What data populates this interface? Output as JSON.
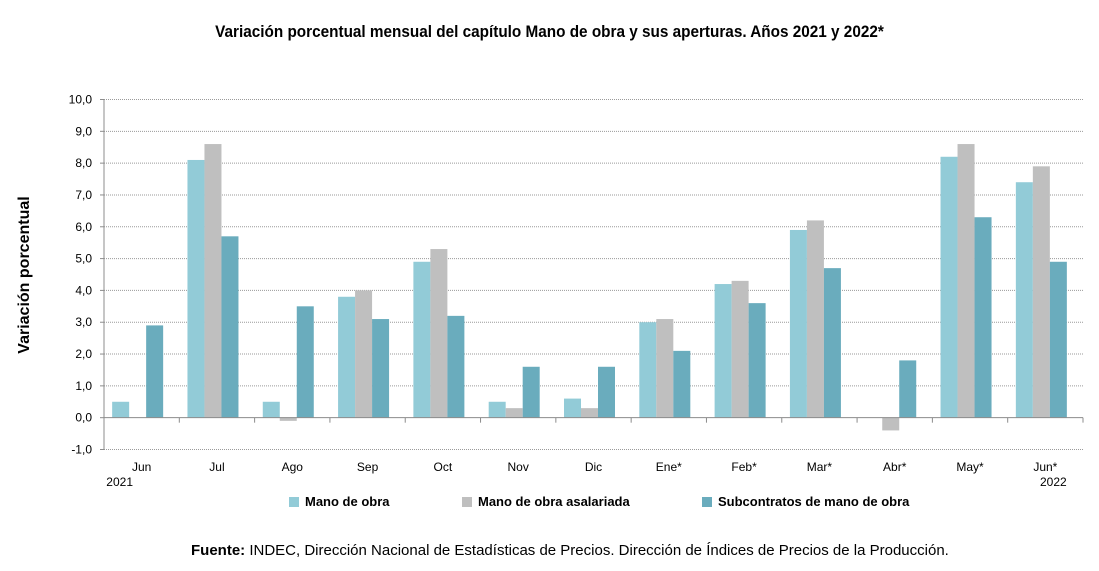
{
  "chart_data": {
    "type": "bar",
    "title": "Variación porcentual mensual del capítulo Mano de obra y sus aperturas. Años 2021 y 2022*",
    "ylabel": "Variación porcentual",
    "xlabel": "",
    "ylim": [
      -1,
      10
    ],
    "yticks": [
      "10,0",
      "9,0",
      "8,0",
      "7,0",
      "6,0",
      "5,0",
      "4,0",
      "3,0",
      "2,0",
      "1,0",
      "0,0",
      "-1,0"
    ],
    "categories": [
      "Jun",
      "Jul",
      "Ago",
      "Sep",
      "Oct",
      "Nov",
      "Dic",
      "Ene*",
      "Feb*",
      "Mar*",
      "Abr*",
      "May*",
      "Jun*"
    ],
    "year_labels": {
      "first": "2021",
      "last": "2022"
    },
    "grid": true,
    "legend_position": "bottom",
    "series": [
      {
        "name": "Mano de obra",
        "color": "#92cbd7",
        "values": [
          0.5,
          8.1,
          0.5,
          3.8,
          4.9,
          0.5,
          0.6,
          3.0,
          4.2,
          5.9,
          0.0,
          8.2,
          7.4
        ]
      },
      {
        "name": "Mano de obra asalariada",
        "color": "#bfbfbf",
        "values": [
          0.0,
          8.6,
          -0.1,
          4.0,
          5.3,
          0.3,
          0.3,
          3.1,
          4.3,
          6.2,
          -0.4,
          8.6,
          7.9
        ]
      },
      {
        "name": "Subcontratos de mano de obra",
        "color": "#6aacbd",
        "values": [
          2.9,
          5.7,
          3.5,
          3.1,
          3.2,
          1.6,
          1.6,
          2.1,
          3.6,
          4.7,
          1.8,
          6.3,
          4.9
        ]
      }
    ]
  },
  "source": {
    "label": "Fuente:",
    "text": " INDEC, Dirección Nacional de Estadísticas de Precios. Dirección de Índices de Precios de la Producción."
  }
}
